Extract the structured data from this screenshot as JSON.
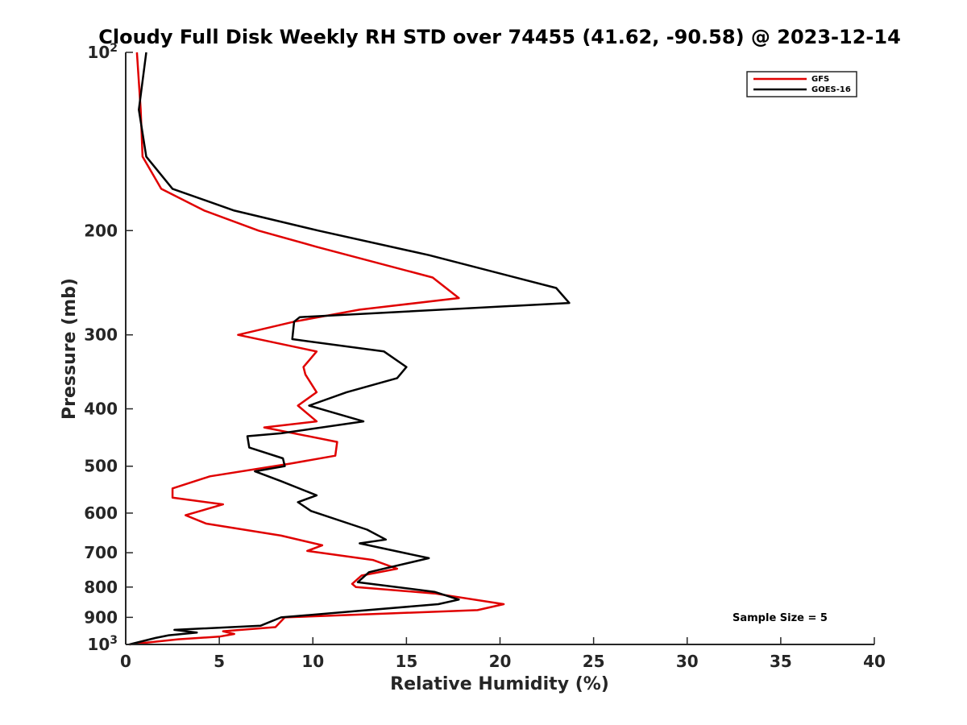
{
  "chart_data": {
    "type": "line",
    "title": "Cloudy Full Disk Weekly RH STD over 74455 (41.62, -90.58) @ 2023-12-14",
    "xlabel": "Relative Humidity (%)",
    "ylabel": "Pressure (mb)",
    "xlim": [
      0,
      40
    ],
    "ylim": [
      100,
      1000
    ],
    "y_scale": "log",
    "y_reversed": true,
    "grid": false,
    "x_ticks": [
      0,
      5,
      10,
      15,
      20,
      25,
      30,
      35,
      40
    ],
    "x_tick_labels": [
      "0",
      "5",
      "10",
      "15",
      "20",
      "25",
      "30",
      "35",
      "40"
    ],
    "y_ticks": [
      100,
      200,
      300,
      400,
      500,
      600,
      700,
      800,
      900,
      1000
    ],
    "y_tick_labels": [
      {
        "value": 100,
        "base": "10",
        "exp": "2"
      },
      {
        "value": 200,
        "base": "200",
        "exp": ""
      },
      {
        "value": 300,
        "base": "300",
        "exp": ""
      },
      {
        "value": 400,
        "base": "400",
        "exp": ""
      },
      {
        "value": 500,
        "base": "500",
        "exp": ""
      },
      {
        "value": 600,
        "base": "600",
        "exp": ""
      },
      {
        "value": 700,
        "base": "700",
        "exp": ""
      },
      {
        "value": 800,
        "base": "800",
        "exp": ""
      },
      {
        "value": 900,
        "base": "900",
        "exp": ""
      },
      {
        "value": 1000,
        "base": "10",
        "exp": "3"
      }
    ],
    "legend_position": "top-right",
    "annotation": "Sample Size = 5",
    "series": [
      {
        "name": "GFS",
        "color": "#e00000",
        "points": [
          [
            0.6,
            100
          ],
          [
            0.8,
            125
          ],
          [
            0.9,
            150
          ],
          [
            1.9,
            170
          ],
          [
            4.2,
            185
          ],
          [
            7.1,
            200
          ],
          [
            10.2,
            213
          ],
          [
            16.4,
            240
          ],
          [
            17.8,
            260
          ],
          [
            12.5,
            272
          ],
          [
            9.0,
            285
          ],
          [
            6.0,
            300
          ],
          [
            10.2,
            320
          ],
          [
            9.5,
            340
          ],
          [
            9.6,
            350
          ],
          [
            10.2,
            375
          ],
          [
            9.2,
            395
          ],
          [
            10.2,
            420
          ],
          [
            7.4,
            430
          ],
          [
            11.3,
            455
          ],
          [
            11.2,
            480
          ],
          [
            8.8,
            495
          ],
          [
            4.5,
            520
          ],
          [
            2.5,
            545
          ],
          [
            2.5,
            565
          ],
          [
            5.2,
            580
          ],
          [
            3.2,
            605
          ],
          [
            4.3,
            625
          ],
          [
            8.3,
            655
          ],
          [
            10.5,
            680
          ],
          [
            9.7,
            695
          ],
          [
            13.2,
            720
          ],
          [
            14.5,
            745
          ],
          [
            12.6,
            765
          ],
          [
            12.1,
            790
          ],
          [
            12.3,
            800
          ],
          [
            16.5,
            820
          ],
          [
            20.2,
            855
          ],
          [
            18.8,
            875
          ],
          [
            8.5,
            900
          ],
          [
            8.0,
            935
          ],
          [
            5.2,
            950
          ],
          [
            5.8,
            960
          ],
          [
            5.0,
            970
          ],
          [
            2.8,
            980
          ],
          [
            0.2,
            1000
          ]
        ]
      },
      {
        "name": "GOES-16",
        "color": "#000000",
        "points": [
          [
            1.1,
            100
          ],
          [
            0.7,
            125
          ],
          [
            1.1,
            150
          ],
          [
            2.5,
            170
          ],
          [
            5.8,
            185
          ],
          [
            10.3,
            200
          ],
          [
            16.2,
            220
          ],
          [
            23.0,
            250
          ],
          [
            23.7,
            265
          ],
          [
            9.3,
            280
          ],
          [
            9.0,
            285
          ],
          [
            8.9,
            305
          ],
          [
            13.8,
            320
          ],
          [
            15.0,
            340
          ],
          [
            14.5,
            355
          ],
          [
            11.8,
            375
          ],
          [
            9.8,
            395
          ],
          [
            12.7,
            420
          ],
          [
            8.3,
            440
          ],
          [
            6.5,
            445
          ],
          [
            6.6,
            465
          ],
          [
            8.4,
            485
          ],
          [
            8.5,
            500
          ],
          [
            6.9,
            510
          ],
          [
            8.3,
            530
          ],
          [
            10.2,
            560
          ],
          [
            9.2,
            575
          ],
          [
            9.9,
            595
          ],
          [
            12.9,
            640
          ],
          [
            13.9,
            665
          ],
          [
            12.5,
            675
          ],
          [
            16.2,
            715
          ],
          [
            13.0,
            755
          ],
          [
            12.4,
            785
          ],
          [
            16.5,
            815
          ],
          [
            17.8,
            840
          ],
          [
            16.7,
            855
          ],
          [
            8.3,
            900
          ],
          [
            7.2,
            930
          ],
          [
            2.6,
            945
          ],
          [
            3.8,
            955
          ],
          [
            2.3,
            965
          ],
          [
            1.6,
            975
          ],
          [
            0.2,
            1000
          ]
        ]
      }
    ]
  }
}
